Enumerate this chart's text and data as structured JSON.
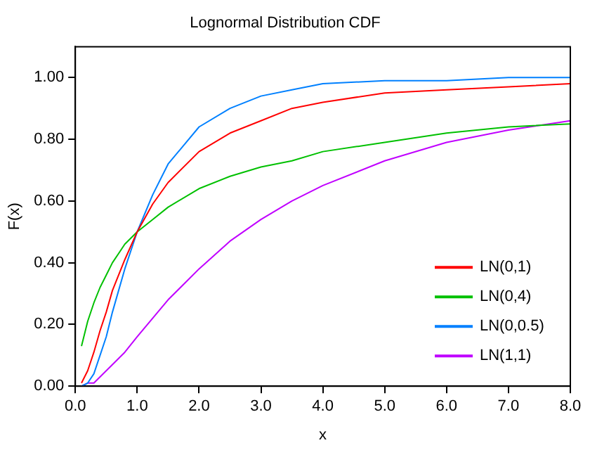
{
  "chart_data": {
    "type": "line",
    "title": "Lognormal Distribution CDF",
    "xlabel": "x",
    "ylabel": "F(x)",
    "x": [
      0.1,
      0.2,
      0.3,
      0.4,
      0.5,
      0.6,
      0.7,
      0.8,
      1.0,
      1.25,
      1.5,
      2,
      2.5,
      3,
      3.5,
      4,
      5,
      6,
      7,
      8
    ],
    "series": [
      {
        "name": "LN(0,1)",
        "color": "#ff0000",
        "values": [
          0.01,
          0.05,
          0.11,
          0.18,
          0.24,
          0.31,
          0.36,
          0.41,
          0.5,
          0.59,
          0.66,
          0.76,
          0.82,
          0.86,
          0.9,
          0.92,
          0.95,
          0.96,
          0.97,
          0.98
        ]
      },
      {
        "name": "LN(0,4)",
        "color": "#00c000",
        "values": [
          0.13,
          0.21,
          0.27,
          0.32,
          0.36,
          0.4,
          0.43,
          0.46,
          0.5,
          0.54,
          0.58,
          0.64,
          0.68,
          0.71,
          0.73,
          0.76,
          0.79,
          0.82,
          0.84,
          0.85
        ]
      },
      {
        "name": "LN(0,0.5)",
        "color": "#0080ff",
        "values": [
          0.0,
          0.01,
          0.04,
          0.1,
          0.16,
          0.24,
          0.31,
          0.38,
          0.5,
          0.62,
          0.72,
          0.84,
          0.9,
          0.94,
          0.96,
          0.98,
          0.99,
          0.99,
          1.0,
          1.0
        ]
      },
      {
        "name": "LN(1,1)",
        "color": "#c000ff",
        "values": [
          0.0,
          0.01,
          0.01,
          0.03,
          0.05,
          0.07,
          0.09,
          0.11,
          0.16,
          0.22,
          0.28,
          0.38,
          0.47,
          0.54,
          0.6,
          0.65,
          0.73,
          0.79,
          0.83,
          0.86
        ]
      }
    ],
    "xlim": [
      0,
      8
    ],
    "xticks": [
      {
        "value": 0,
        "label": "0.0"
      },
      {
        "value": 1,
        "label": "1.0"
      },
      {
        "value": 2,
        "label": "2.0"
      },
      {
        "value": 3,
        "label": "3.0"
      },
      {
        "value": 4,
        "label": "4.0"
      },
      {
        "value": 5,
        "label": "5.0"
      },
      {
        "value": 6,
        "label": "6.0"
      },
      {
        "value": 7,
        "label": "7.0"
      },
      {
        "value": 8,
        "label": "8.0"
      }
    ],
    "ylim": [
      0,
      1.1
    ],
    "yticks": [
      {
        "value": 0,
        "label": "0.00"
      },
      {
        "value": 0.2,
        "label": "0.20"
      },
      {
        "value": 0.4,
        "label": "0.40"
      },
      {
        "value": 0.6,
        "label": "0.60"
      },
      {
        "value": 0.8,
        "label": "0.80"
      },
      {
        "value": 1,
        "label": "1.00"
      }
    ],
    "grid": false,
    "legend": "bottom right",
    "marker": "none",
    "line_style": "solid"
  }
}
